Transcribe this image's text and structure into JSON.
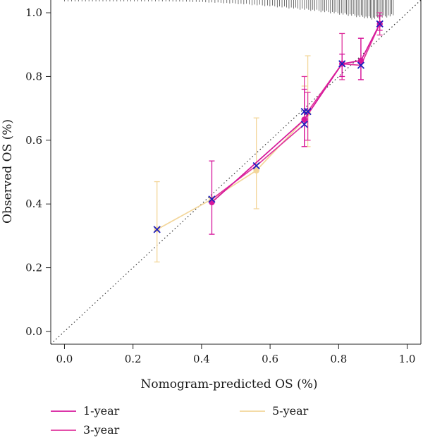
{
  "chart_data": {
    "type": "line",
    "title": "",
    "xlabel": "Nomogram-predicted OS (%)",
    "ylabel": "Observed OS (%)",
    "xlim": [
      -0.04,
      1.04
    ],
    "ylim": [
      -0.04,
      1.04
    ],
    "xticks": [
      {
        "value": 0.0,
        "label": "0.0"
      },
      {
        "value": 0.2,
        "label": "0.2"
      },
      {
        "value": 0.4,
        "label": "0.4"
      },
      {
        "value": 0.6,
        "label": "0.6"
      },
      {
        "value": 0.8,
        "label": "0.8"
      },
      {
        "value": 1.0,
        "label": "1.0"
      }
    ],
    "yticks": [
      {
        "value": 0.0,
        "label": "0.0"
      },
      {
        "value": 0.2,
        "label": "0.2"
      },
      {
        "value": 0.4,
        "label": "0.4"
      },
      {
        "value": 0.6,
        "label": "0.6"
      },
      {
        "value": 0.8,
        "label": "0.8"
      },
      {
        "value": 1.0,
        "label": "1.0"
      }
    ],
    "reference_line": {
      "style": "dotted",
      "color": "#222222",
      "from": [
        -0.04,
        -0.04
      ],
      "to": [
        1.04,
        1.04
      ]
    },
    "legend_position": "bottom",
    "series": [
      {
        "name": "1-year",
        "color": "#d6179b",
        "marker": "circle",
        "points": [
          {
            "x": 0.43,
            "y": 0.405,
            "lo": 0.305,
            "hi": 0.535
          },
          {
            "x": 0.7,
            "y": 0.665,
            "lo": 0.58,
            "hi": 0.76
          },
          {
            "x": 0.81,
            "y": 0.84,
            "lo": 0.8,
            "hi": 0.87
          },
          {
            "x": 0.865,
            "y": 0.85,
            "lo": 0.79,
            "hi": 0.92
          },
          {
            "x": 0.92,
            "y": 0.965,
            "lo": 0.945,
            "hi": 0.99
          }
        ]
      },
      {
        "name": "3-year",
        "color": "#e0379e",
        "marker": "cross",
        "marker_color": "#1f1fbf",
        "points": [
          {
            "x": 0.43,
            "y": 0.415
          },
          {
            "x": 0.56,
            "y": 0.52
          },
          {
            "x": 0.7,
            "y": 0.65,
            "lo": 0.58,
            "hi": 0.8
          },
          {
            "x": 0.71,
            "y": 0.69,
            "lo": 0.6,
            "hi": 0.75
          },
          {
            "x": 0.81,
            "y": 0.84,
            "lo": 0.79,
            "hi": 0.935
          },
          {
            "x": 0.865,
            "y": 0.835,
            "lo": 0.79,
            "hi": 0.92
          },
          {
            "x": 0.92,
            "y": 0.965,
            "lo": 0.93,
            "hi": 1.0
          }
        ]
      },
      {
        "name": "5-year",
        "color": "#f3d69a",
        "marker": "circle",
        "points": [
          {
            "x": 0.27,
            "y": 0.32,
            "lo": 0.218,
            "hi": 0.47
          },
          {
            "x": 0.43,
            "y": 0.415
          },
          {
            "x": 0.56,
            "y": 0.505,
            "lo": 0.385,
            "hi": 0.67
          },
          {
            "x": 0.7,
            "y": 0.665,
            "lo": 0.58,
            "hi": 0.77
          },
          {
            "x": 0.71,
            "y": 0.685,
            "lo": 0.58,
            "hi": 0.865
          }
        ]
      }
    ],
    "x_cross_markers": [
      {
        "x": 0.27,
        "y": 0.32
      },
      {
        "x": 0.43,
        "y": 0.415
      },
      {
        "x": 0.56,
        "y": 0.52
      },
      {
        "x": 0.7,
        "y": 0.65
      },
      {
        "x": 0.7,
        "y": 0.69
      },
      {
        "x": 0.71,
        "y": 0.69
      },
      {
        "x": 0.81,
        "y": 0.84
      },
      {
        "x": 0.865,
        "y": 0.835
      },
      {
        "x": 0.92,
        "y": 0.965
      }
    ],
    "rug": {
      "from": 0.0,
      "to": 0.96,
      "density_peak": 0.9
    }
  }
}
